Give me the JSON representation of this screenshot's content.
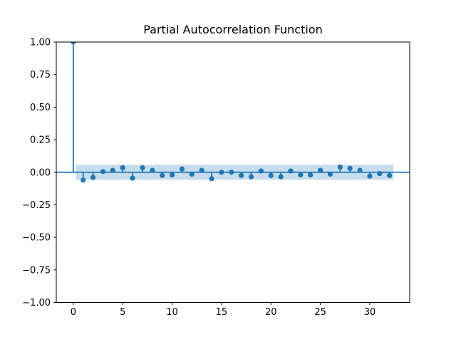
{
  "window": {
    "background": "#ffffff"
  },
  "chart_data": {
    "type": "stem",
    "title": "Partial Autocorrelation Function",
    "xlabel": "",
    "ylabel": "",
    "x": [
      0,
      1,
      2,
      3,
      4,
      5,
      6,
      7,
      8,
      9,
      10,
      11,
      12,
      13,
      14,
      15,
      16,
      17,
      18,
      19,
      20,
      21,
      22,
      23,
      24,
      25,
      26,
      27,
      28,
      29,
      30,
      31,
      32
    ],
    "values": [
      1.0,
      -0.06,
      -0.04,
      0.005,
      0.015,
      0.035,
      -0.045,
      0.035,
      0.015,
      -0.025,
      -0.02,
      0.025,
      -0.015,
      0.015,
      -0.05,
      0.0,
      0.0,
      -0.025,
      -0.035,
      0.01,
      -0.025,
      -0.035,
      0.01,
      -0.02,
      -0.02,
      0.015,
      -0.015,
      0.04,
      0.03,
      0.015,
      -0.03,
      -0.01,
      -0.025
    ],
    "confidence_band": {
      "lower": -0.058,
      "upper": 0.058,
      "x_start": 0.25,
      "x_end": 32.4
    },
    "zero_line": 0.0,
    "xlim": [
      -1.72,
      34.04
    ],
    "ylim": [
      -1.0,
      1.0
    ],
    "xticks": {
      "values": [
        0,
        5,
        10,
        15,
        20,
        25,
        30
      ],
      "labels": [
        "0",
        "5",
        "10",
        "15",
        "20",
        "25",
        "30"
      ]
    },
    "yticks": {
      "values": [
        1.0,
        0.75,
        0.5,
        0.25,
        0.0,
        -0.25,
        -0.5,
        -0.75,
        -1.0
      ],
      "labels": [
        "1.00",
        "0.75",
        "0.50",
        "0.25",
        "0.00",
        "−0.25",
        "−0.50",
        "−0.75",
        "−1.00"
      ]
    },
    "grid": "off",
    "legend": "none",
    "colors": {
      "series": "#1f77b4",
      "band": "rgba(31,119,180,0.25)",
      "spine": "#000000",
      "tick_text": "#000000"
    }
  }
}
